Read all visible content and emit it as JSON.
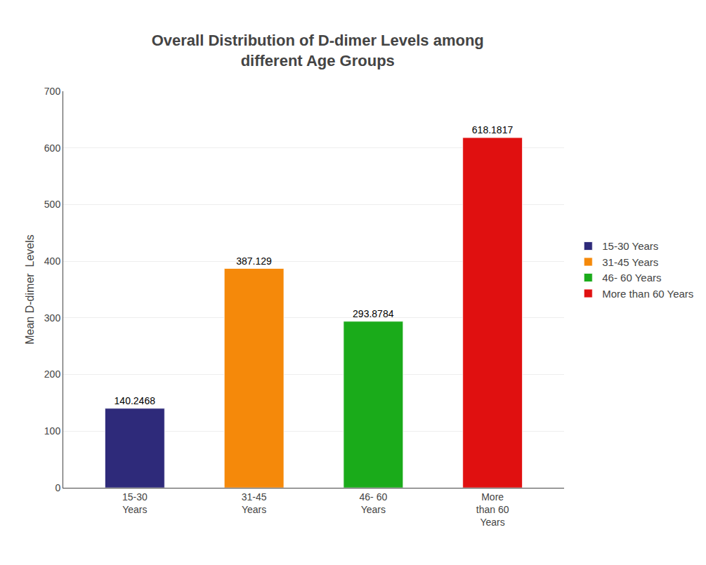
{
  "chart_data": {
    "type": "bar",
    "title": "Overall Distribution of D-dimer Levels among\ndifferent Age Groups",
    "ylabel": "Mean D-dimer  Levels",
    "categories": [
      "15-30\nYears",
      "31-45\nYears",
      "46- 60\nYears",
      "More\nthan 60\nYears"
    ],
    "series": [
      {
        "name": "15-30 Years",
        "color": "#2e2a7a",
        "values": [
          140.2468,
          null,
          null,
          null
        ]
      },
      {
        "name": "31-45 Years",
        "color": "#f5890a",
        "values": [
          null,
          387.129,
          null,
          null
        ]
      },
      {
        "name": "46- 60 Years",
        "color": "#1aab1a",
        "values": [
          null,
          null,
          293.8784,
          null
        ]
      },
      {
        "name": "More than 60 Years",
        "color": "#e01010",
        "values": [
          null,
          null,
          null,
          618.1817
        ]
      }
    ],
    "ylim": [
      0,
      700
    ],
    "yticks": [
      0,
      100,
      200,
      300,
      400,
      500,
      600,
      700
    ],
    "grid": true,
    "legend": "right",
    "data_labels": true
  }
}
